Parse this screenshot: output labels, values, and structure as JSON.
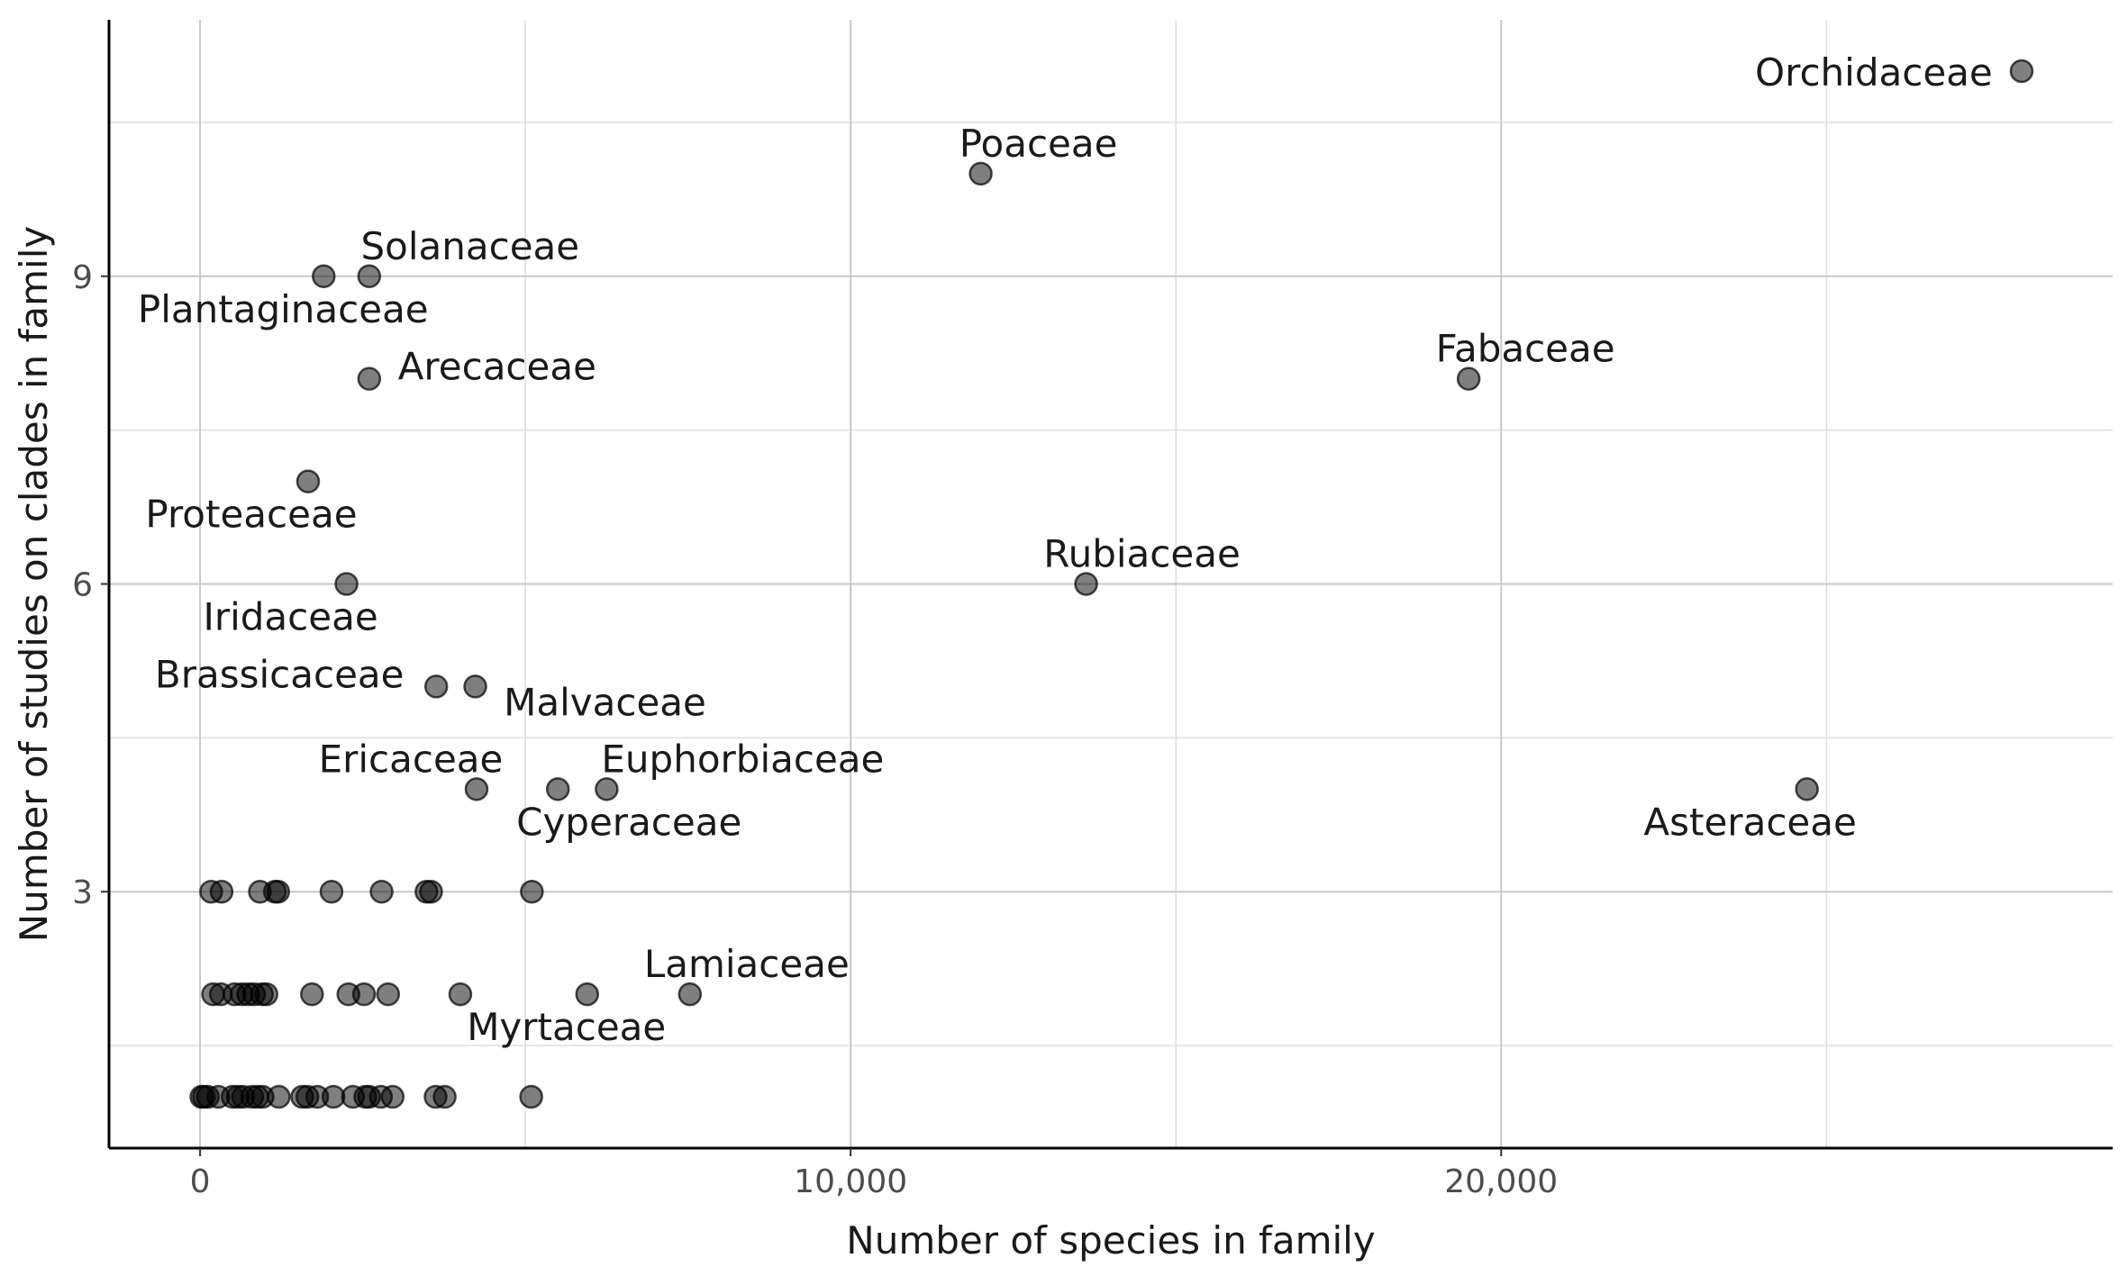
{
  "chart_data": {
    "type": "scatter",
    "xlabel": "Number of species in family",
    "ylabel": "Number of studies on clades in family",
    "xlim": [
      -1400,
      29400
    ],
    "ylim": [
      0.5,
      11.5
    ],
    "x_ticks": [
      0,
      10000,
      20000
    ],
    "x_tick_labels": [
      "0",
      "10,000",
      "20,000"
    ],
    "x_minor_ticks": [
      5000,
      15000,
      25000
    ],
    "y_ticks": [
      3,
      6,
      9
    ],
    "y_tick_labels": [
      "3",
      "6",
      "9"
    ],
    "y_minor_ticks": [
      1.5,
      4.5,
      7.5,
      10.5
    ],
    "grid": true,
    "legend": "none",
    "point_color": "#000000",
    "point_alpha": 0.5,
    "labeled_points": [
      {
        "label": "Orchidaceae",
        "x": 28000,
        "y": 11
      },
      {
        "label": "Poaceae",
        "x": 12000,
        "y": 10
      },
      {
        "label": "Solanaceae",
        "x": 2600,
        "y": 9
      },
      {
        "label": "Plantaginaceae",
        "x": 1900,
        "y": 9
      },
      {
        "label": "Arecaceae",
        "x": 2600,
        "y": 8
      },
      {
        "label": "Fabaceae",
        "x": 19500,
        "y": 8
      },
      {
        "label": "Proteaceae",
        "x": 1660,
        "y": 7
      },
      {
        "label": "Iridaceae",
        "x": 2250,
        "y": 6
      },
      {
        "label": "Rubiaceae",
        "x": 13620,
        "y": 6
      },
      {
        "label": "Brassicaceae",
        "x": 3630,
        "y": 5
      },
      {
        "label": "Malvaceae",
        "x": 4230,
        "y": 5
      },
      {
        "label": "Ericaceae",
        "x": 4250,
        "y": 4
      },
      {
        "label": "Euphorbiaceae",
        "x": 6250,
        "y": 4
      },
      {
        "label": "Cyperaceae",
        "x": 5500,
        "y": 4
      },
      {
        "label": "Asteraceae",
        "x": 24700,
        "y": 4
      },
      {
        "label": "Lamiaceae",
        "x": 7530,
        "y": 2
      },
      {
        "label": "Myrtaceae",
        "x": 5950,
        "y": 2
      }
    ],
    "unlabeled_points": [
      {
        "x": 170,
        "y": 3
      },
      {
        "x": 330,
        "y": 3
      },
      {
        "x": 920,
        "y": 3
      },
      {
        "x": 1150,
        "y": 3
      },
      {
        "x": 1200,
        "y": 3
      },
      {
        "x": 2020,
        "y": 3
      },
      {
        "x": 2790,
        "y": 3
      },
      {
        "x": 3480,
        "y": 3
      },
      {
        "x": 3550,
        "y": 3
      },
      {
        "x": 5100,
        "y": 3
      },
      {
        "x": 200,
        "y": 2
      },
      {
        "x": 320,
        "y": 2
      },
      {
        "x": 530,
        "y": 2
      },
      {
        "x": 640,
        "y": 2
      },
      {
        "x": 740,
        "y": 2
      },
      {
        "x": 830,
        "y": 2
      },
      {
        "x": 950,
        "y": 2
      },
      {
        "x": 1020,
        "y": 2
      },
      {
        "x": 1720,
        "y": 2
      },
      {
        "x": 2280,
        "y": 2
      },
      {
        "x": 2520,
        "y": 2
      },
      {
        "x": 2890,
        "y": 2
      },
      {
        "x": 4000,
        "y": 2
      },
      {
        "x": 20,
        "y": 1
      },
      {
        "x": 60,
        "y": 1
      },
      {
        "x": 120,
        "y": 1
      },
      {
        "x": 280,
        "y": 1
      },
      {
        "x": 500,
        "y": 1
      },
      {
        "x": 580,
        "y": 1
      },
      {
        "x": 660,
        "y": 1
      },
      {
        "x": 800,
        "y": 1
      },
      {
        "x": 880,
        "y": 1
      },
      {
        "x": 960,
        "y": 1
      },
      {
        "x": 1210,
        "y": 1
      },
      {
        "x": 1570,
        "y": 1
      },
      {
        "x": 1650,
        "y": 1
      },
      {
        "x": 1800,
        "y": 1
      },
      {
        "x": 2050,
        "y": 1
      },
      {
        "x": 2350,
        "y": 1
      },
      {
        "x": 2540,
        "y": 1
      },
      {
        "x": 2600,
        "y": 1
      },
      {
        "x": 2780,
        "y": 1
      },
      {
        "x": 2960,
        "y": 1
      },
      {
        "x": 3620,
        "y": 1
      },
      {
        "x": 3760,
        "y": 1
      },
      {
        "x": 5090,
        "y": 1
      }
    ]
  }
}
